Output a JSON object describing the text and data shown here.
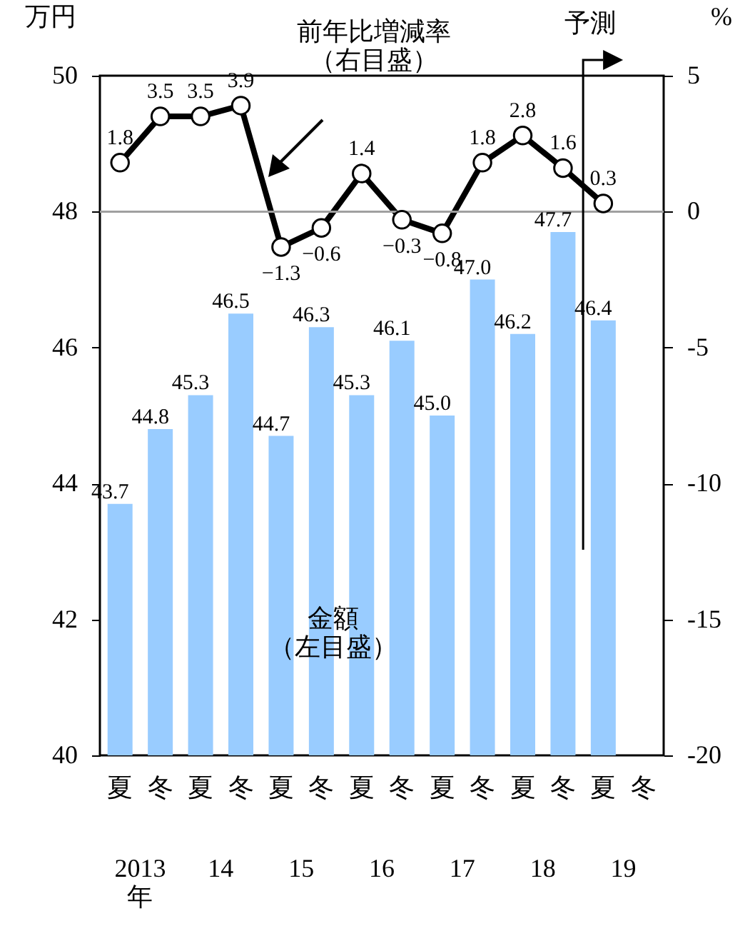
{
  "chart_data": {
    "type": "bar",
    "categories": [
      "夏",
      "冬",
      "夏",
      "冬",
      "夏",
      "冬",
      "夏",
      "冬",
      "夏",
      "冬",
      "夏",
      "冬",
      "夏",
      "冬"
    ],
    "series": [
      {
        "name": "金額（左目盛）",
        "color": "#99ccff",
        "values": [
          43.7,
          44.8,
          45.3,
          46.5,
          44.7,
          46.3,
          45.3,
          46.1,
          45.0,
          47.0,
          46.2,
          47.7,
          46.4,
          null
        ],
        "value_labels": [
          "43.7",
          "44.8",
          "45.3",
          "46.5",
          "44.7",
          "46.3",
          "45.3",
          "46.1",
          "45.0",
          "47.0",
          "46.2",
          "47.7",
          "46.4",
          null
        ]
      },
      {
        "name": "前年比増減率（右目盛）",
        "type": "line",
        "axis": "y2",
        "color": "#000000",
        "marker": "circle",
        "values": [
          1.8,
          3.5,
          3.5,
          3.9,
          -1.3,
          -0.6,
          1.4,
          -0.3,
          -0.8,
          1.8,
          2.8,
          1.6,
          0.3,
          null
        ],
        "value_labels": [
          "1.8",
          "3.5",
          "3.5",
          "3.9",
          "−1.3",
          "−0.6",
          "1.4",
          "−0.3",
          "−0.8",
          "1.8",
          "2.8",
          "1.6",
          "0.3",
          null
        ]
      }
    ],
    "ylabel": "万円",
    "y2label": "%",
    "ylim": [
      40,
      50
    ],
    "yticks": [
      40,
      42,
      44,
      46,
      48,
      50
    ],
    "y2lim": [
      -20,
      5
    ],
    "y2ticks": [
      -20,
      -15,
      -10,
      -5,
      0,
      5
    ],
    "ref_lines": [
      {
        "axis": "y2",
        "value": 0,
        "color": "#a0a0a0"
      }
    ],
    "annotations": [
      "2013\n年",
      "14",
      "15",
      "16",
      "17",
      "18",
      "19",
      "予測"
    ],
    "grid": false
  }
}
